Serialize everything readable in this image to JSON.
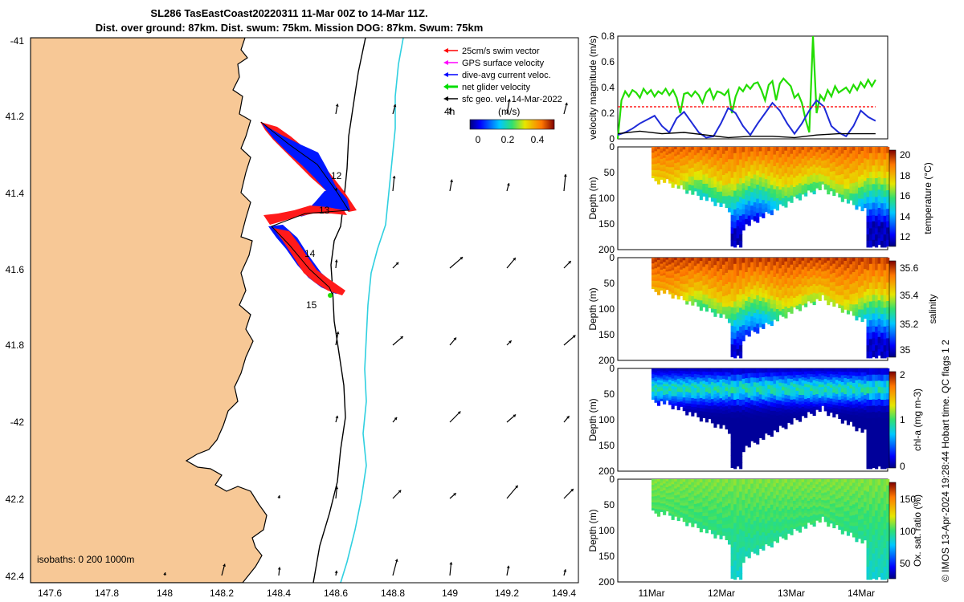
{
  "header": {
    "title_line1": "SL286 TasEastCoast20220311 11-Mar 00Z to 14-Mar 11Z.",
    "title_line2": "Dist. over ground: 87km. Dist. swum: 75km. Mission DOG: 87km. Swum: 75km"
  },
  "credit": "© IMOS 13-Apr-2024 19:28:44 Hobart time. QC flags 1  2",
  "map": {
    "lat_ticks": [
      "-41",
      "41.2",
      "41.4",
      "41.6",
      "41.8",
      "-42",
      "42.2",
      "42.4"
    ],
    "lon_ticks": [
      "147.6",
      "147.8",
      "148",
      "148.2",
      "148.4",
      "148.6",
      "148.8",
      "149",
      "149.2",
      "149.4"
    ],
    "day_labels": [
      "12",
      "13",
      "14",
      "15"
    ],
    "isobaths_label": "isobaths: 0   200  1000m",
    "legend": [
      {
        "label": "25cm/s swim vector",
        "color": "#ff0000"
      },
      {
        "label": "GPS surface velocity",
        "color": "#ff00ff"
      },
      {
        "label": "dive-avg current veloc.",
        "color": "#0000ff"
      },
      {
        "label": "net glider velocity",
        "color": "#00dd00"
      },
      {
        "label": "sfc geo. vel. 14-Mar-2022",
        "color": "#000000"
      }
    ],
    "scale_label": "4h",
    "colorbar_label": "(m/s)",
    "colorbar_ticks": [
      "0",
      "0.2",
      "0.4"
    ],
    "land_color": "#f7c896",
    "isobath_200_color": "#000000",
    "isobath_1000_color": "#30d0e0"
  },
  "chart_data": [
    {
      "type": "line",
      "title": "",
      "ylabel": "velocity magnitude (m/s)",
      "ylim": [
        0,
        0.8
      ],
      "y_ticks": [
        "0",
        "0.2",
        "0.4",
        "0.6",
        "0.8"
      ],
      "x_range": [
        11.0,
        14.5
      ],
      "series": [
        {
          "name": "net glider velocity",
          "color": "#22dd00",
          "x": [
            11.0,
            11.05,
            11.1,
            11.15,
            11.2,
            11.25,
            11.3,
            11.35,
            11.4,
            11.45,
            11.5,
            11.55,
            11.6,
            11.65,
            11.7,
            11.75,
            11.8,
            11.85,
            11.9,
            11.95,
            12.0,
            12.05,
            12.1,
            12.15,
            12.2,
            12.25,
            12.3,
            12.35,
            12.4,
            12.45,
            12.5,
            12.55,
            12.6,
            12.65,
            12.7,
            12.75,
            12.8,
            12.85,
            12.9,
            12.95,
            13.0,
            13.05,
            13.1,
            13.15,
            13.2,
            13.25,
            13.3,
            13.35,
            13.4,
            13.45,
            13.5,
            13.55,
            13.6,
            13.65,
            13.7,
            13.75,
            13.8,
            13.85,
            13.9,
            13.95,
            14.0,
            14.05,
            14.1,
            14.15,
            14.2,
            14.25,
            14.3,
            14.35,
            14.4,
            14.45,
            14.5
          ],
          "y": [
            0.0,
            0.3,
            0.37,
            0.33,
            0.38,
            0.36,
            0.32,
            0.39,
            0.35,
            0.38,
            0.33,
            0.37,
            0.35,
            0.39,
            0.34,
            0.38,
            0.32,
            0.2,
            0.35,
            0.36,
            0.33,
            0.37,
            0.34,
            0.28,
            0.36,
            0.39,
            0.31,
            0.37,
            0.36,
            0.34,
            0.38,
            0.2,
            0.33,
            0.4,
            0.37,
            0.42,
            0.39,
            0.43,
            0.44,
            0.38,
            0.3,
            0.42,
            0.45,
            0.3,
            0.43,
            0.47,
            0.44,
            0.41,
            0.32,
            0.35,
            0.28,
            0.15,
            0.05,
            0.8,
            0.2,
            0.34,
            0.3,
            0.38,
            0.33,
            0.41,
            0.36,
            0.38,
            0.4,
            0.36,
            0.42,
            0.38,
            0.44,
            0.4,
            0.46,
            0.41,
            0.46
          ]
        },
        {
          "name": "dive-avg current veloc.",
          "color": "#1e2ad8",
          "x": [
            11.0,
            11.1,
            11.2,
            11.3,
            11.4,
            11.5,
            11.6,
            11.7,
            11.8,
            11.9,
            12.0,
            12.1,
            12.2,
            12.3,
            12.4,
            12.5,
            12.6,
            12.7,
            12.8,
            12.9,
            13.0,
            13.1,
            13.2,
            13.3,
            13.4,
            13.5,
            13.6,
            13.7,
            13.8,
            13.9,
            14.0,
            14.1,
            14.2,
            14.3,
            14.4,
            14.5
          ],
          "y": [
            0.03,
            0.05,
            0.08,
            0.12,
            0.15,
            0.18,
            0.1,
            0.05,
            0.16,
            0.21,
            0.13,
            0.05,
            0.01,
            0.02,
            0.12,
            0.24,
            0.2,
            0.1,
            0.03,
            0.12,
            0.2,
            0.28,
            0.22,
            0.12,
            0.04,
            0.12,
            0.22,
            0.3,
            0.25,
            0.1,
            0.05,
            0.02,
            0.1,
            0.22,
            0.17,
            0.14
          ]
        },
        {
          "name": "25cm/s swim vector",
          "color": "#ff2020",
          "x": [
            11.0,
            14.5
          ],
          "y": [
            0.25,
            0.25
          ]
        },
        {
          "name": "sfc geo. vel. 14-Mar-2022",
          "color": "#000000",
          "x": [
            11.0,
            11.3,
            11.6,
            11.9,
            12.2,
            12.5,
            12.8,
            13.1,
            13.4,
            13.7,
            14.0,
            14.3,
            14.5
          ],
          "y": [
            0.04,
            0.06,
            0.04,
            0.05,
            0.03,
            0.01,
            0.02,
            0.02,
            0.01,
            0.03,
            0.04,
            0.04,
            0.04
          ]
        }
      ]
    },
    {
      "type": "heatmap",
      "ylabel": "Depth (m)",
      "colorbar_label": "temperature (°C)",
      "colorbar_ticks": [
        "12",
        "14",
        "16",
        "18",
        "20"
      ],
      "color_range": [
        11.5,
        20.5
      ],
      "ylim": [
        200,
        0
      ],
      "y_ticks": [
        "0",
        "50",
        "100",
        "150",
        "200"
      ],
      "surface_value": 19.5,
      "thermocline_depth": 60,
      "bottom_value": 12.0
    },
    {
      "type": "heatmap",
      "ylabel": "Depth (m)",
      "colorbar_label": "salinity",
      "colorbar_ticks": [
        "35",
        "35.2",
        "35.4",
        "35.6"
      ],
      "color_range": [
        34.95,
        35.65
      ],
      "ylim": [
        200,
        0
      ],
      "y_ticks": [
        "0",
        "50",
        "100",
        "150",
        "200"
      ],
      "surface_value": 35.6,
      "thermocline_depth": 70,
      "bottom_value": 35.0
    },
    {
      "type": "heatmap",
      "ylabel": "Depth (m)",
      "colorbar_label": "chl-a (mg m-3)",
      "colorbar_ticks": [
        "0",
        "1",
        "2"
      ],
      "color_range": [
        0,
        2
      ],
      "ylim": [
        200,
        0
      ],
      "y_ticks": [
        "0",
        "50",
        "100",
        "150",
        "200"
      ],
      "surface_value": 0.9,
      "max_layer_depth": 40,
      "bottom_value": 0.05
    },
    {
      "type": "heatmap",
      "ylabel": "Depth (m)",
      "colorbar_label": "Ox. sat. ratio (%)",
      "colorbar_ticks": [
        "50",
        "100",
        "150"
      ],
      "color_range": [
        25,
        175
      ],
      "ylim": [
        200,
        0
      ],
      "y_ticks": [
        "0",
        "50",
        "100",
        "150",
        "200"
      ],
      "surface_value": 110,
      "bottom_value": 90,
      "x_ticks": [
        "11Mar",
        "12Mar",
        "13Mar",
        "14Mar"
      ]
    }
  ]
}
